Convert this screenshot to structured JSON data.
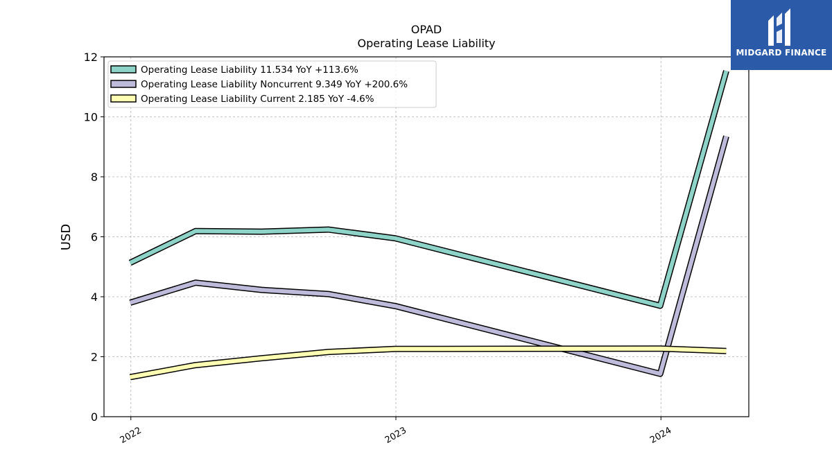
{
  "logo": {
    "brand": "MIDGARD FINANCE",
    "icon": "midgard-finance-logo-icon",
    "color": "#2a5aa8"
  },
  "chart_data": {
    "type": "line",
    "title": "OPAD",
    "subtitle": "Operating Lease Liability",
    "xlabel": "",
    "ylabel": "USD",
    "ylim": [
      0,
      12
    ],
    "yticks": [
      0,
      2,
      4,
      6,
      8,
      10,
      12
    ],
    "xlim": [
      "2021-11-25",
      "2024-05-01"
    ],
    "xticks": [
      {
        "date": "2022-01-01",
        "label": "2022"
      },
      {
        "date": "2023-01-01",
        "label": "2023"
      },
      {
        "date": "2024-01-01",
        "label": "2024"
      }
    ],
    "grid": true,
    "legend_position": "top-left",
    "x": [
      "2021-12-31",
      "2022-03-31",
      "2022-06-30",
      "2022-09-30",
      "2022-12-31",
      "2023-12-31",
      "2024-03-31"
    ],
    "series": [
      {
        "name": "Operating Lease Liability",
        "legend_label": "Operating Lease Liability  11.534 YoY +113.6%",
        "color": "#8dd3c7",
        "values": [
          5.13,
          6.19,
          6.17,
          6.24,
          5.95,
          3.7,
          11.53
        ]
      },
      {
        "name": "Operating Lease Liability Noncurrent",
        "legend_label": "Operating Lease Liability Noncurrent  9.349 YoY +200.6%",
        "color": "#bebada",
        "values": [
          3.8,
          4.47,
          4.23,
          4.09,
          3.69,
          1.43,
          9.35
        ]
      },
      {
        "name": "Operating Lease Liability Current",
        "legend_label": "Operating Lease Liability Current  2.185 YoY -4.6%",
        "color": "#ffffb3",
        "values": [
          1.32,
          1.72,
          1.95,
          2.16,
          2.26,
          2.27,
          2.19
        ]
      }
    ]
  }
}
